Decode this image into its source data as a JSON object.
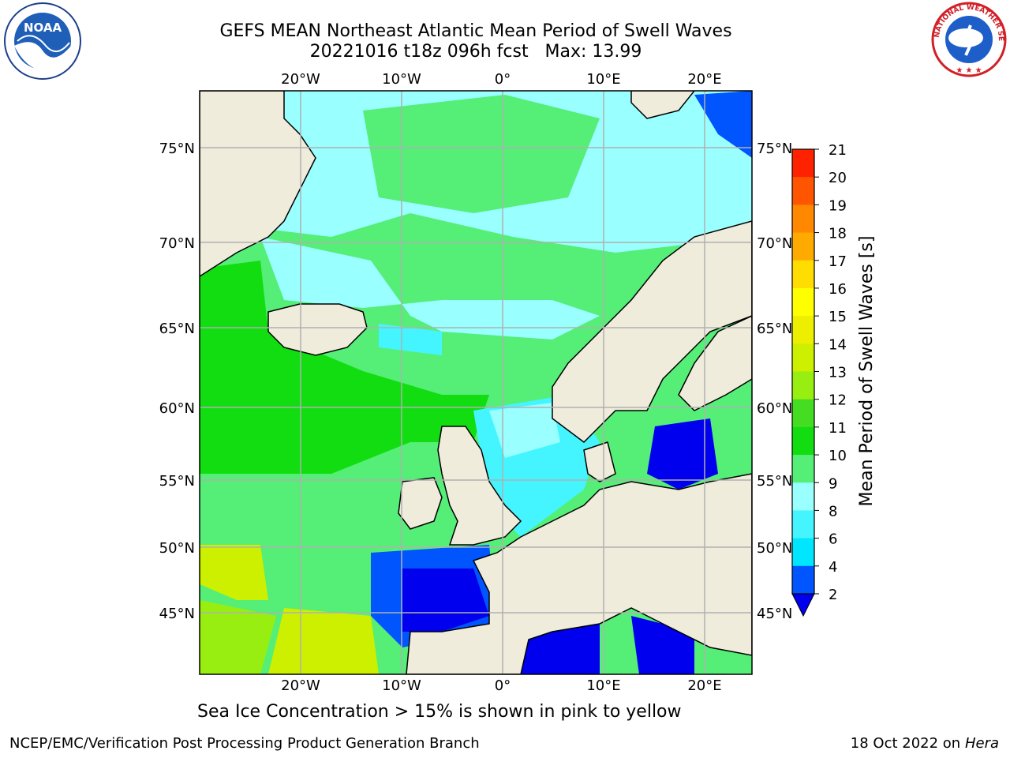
{
  "title": {
    "line1": "GEFS MEAN Northeast Atlantic Mean Period of Swell Waves",
    "line2": "20221016 t18z 096h fcst   Max: 13.99"
  },
  "caption": "Sea Ice Concentration > 15% is shown in pink to yellow",
  "footer": {
    "left": "NCEP/EMC/Verification Post Processing Product Generation Branch",
    "date": "18 Oct 2022 on ",
    "machine": "Hera"
  },
  "map": {
    "lon_labels": [
      "20°W",
      "10°W",
      "0°",
      "10°E",
      "20°E"
    ],
    "lat_labels": [
      "75°N",
      "70°N",
      "65°N",
      "60°N",
      "55°N",
      "50°N",
      "45°N"
    ],
    "land_color": "#efecdc",
    "ocean_default_color": "#6af27a"
  },
  "colorbar": {
    "label": "Mean Period of Swell Waves [s]",
    "ticks": [
      "2",
      "4",
      "6",
      "8",
      "9",
      "10",
      "11",
      "12",
      "13",
      "14",
      "15",
      "16",
      "17",
      "18",
      "19",
      "20",
      "21"
    ],
    "colors": [
      "#0055ff",
      "#00e6ff",
      "#44f5ff",
      "#99ffff",
      "#55ee77",
      "#11dd11",
      "#44dd22",
      "#99ee11",
      "#ccf000",
      "#eeee00",
      "#ffff00",
      "#ffdd00",
      "#ffaa00",
      "#ff8800",
      "#ff5500",
      "#ff2200"
    ],
    "under_color": "#0000ee"
  },
  "logos": {
    "left": "NOAA",
    "right": "NATIONAL WEATHER SERVICE"
  }
}
